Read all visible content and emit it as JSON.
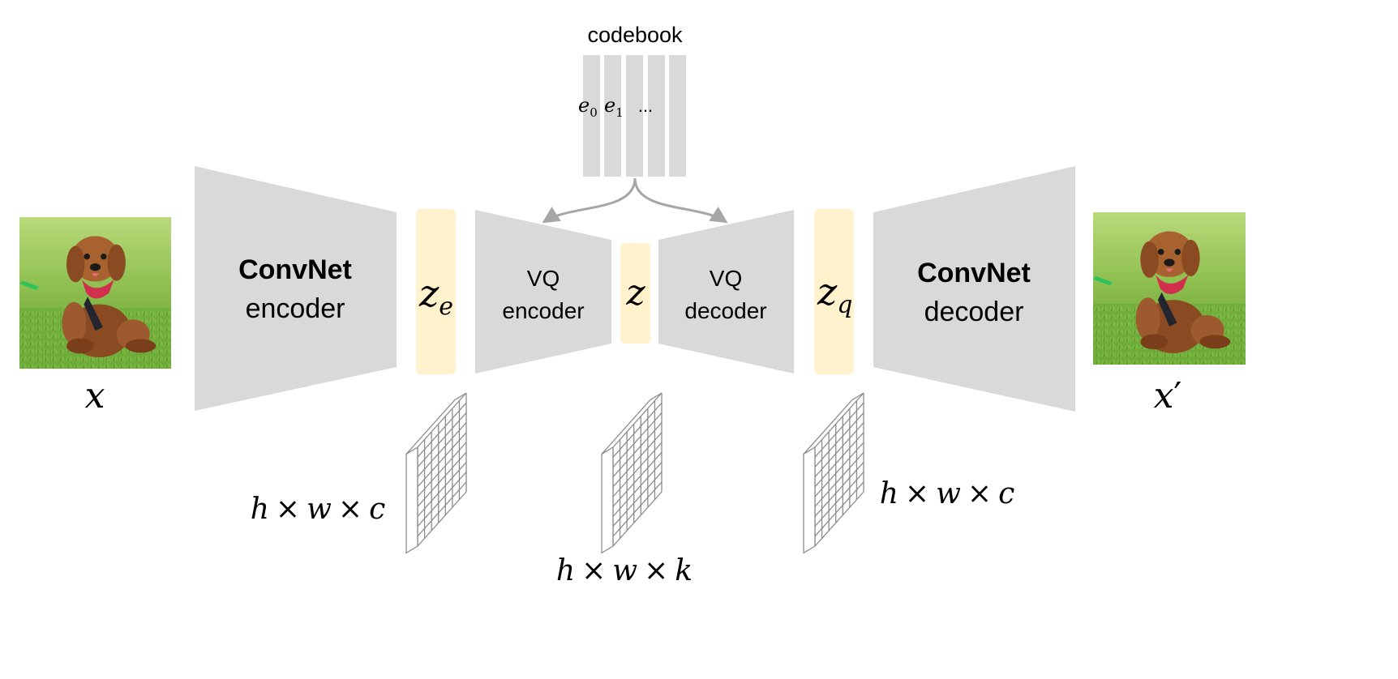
{
  "codebook": {
    "title": "codebook",
    "entries": [
      "e",
      "e",
      "..."
    ],
    "entry_subscripts": [
      "0",
      "1"
    ]
  },
  "blocks": {
    "encoder": {
      "line1": "ConvNet",
      "line2": "encoder"
    },
    "vq_encoder": {
      "line1": "VQ",
      "line2": "encoder"
    },
    "vq_decoder": {
      "line1": "VQ",
      "line2": "decoder"
    },
    "decoder": {
      "line1": "ConvNet",
      "line2": "decoder"
    }
  },
  "latents": {
    "ze": {
      "base": "z",
      "sub": "e"
    },
    "z": {
      "base": "z"
    },
    "zq": {
      "base": "z",
      "sub": "q"
    }
  },
  "images": {
    "input": {
      "label": "x",
      "subject": "poodle-photo"
    },
    "output": {
      "label": "x",
      "prime": "′",
      "subject": "poodle-photo"
    }
  },
  "shapes": {
    "left": {
      "a": "h",
      "b": "w",
      "c": "c",
      "times": "×"
    },
    "middle": {
      "a": "h",
      "b": "w",
      "c": "k",
      "times": "×"
    },
    "right": {
      "a": "h",
      "b": "w",
      "c": "c",
      "times": "×"
    }
  },
  "colors": {
    "block_gray": "#d9d9d9",
    "latent_yellow": "#fff2cc",
    "arrow_gray": "#a6a6a6",
    "grass_green": "#6fae3a",
    "dog_brown": "#9c5a2e",
    "bandana_red": "#d22e4e"
  }
}
